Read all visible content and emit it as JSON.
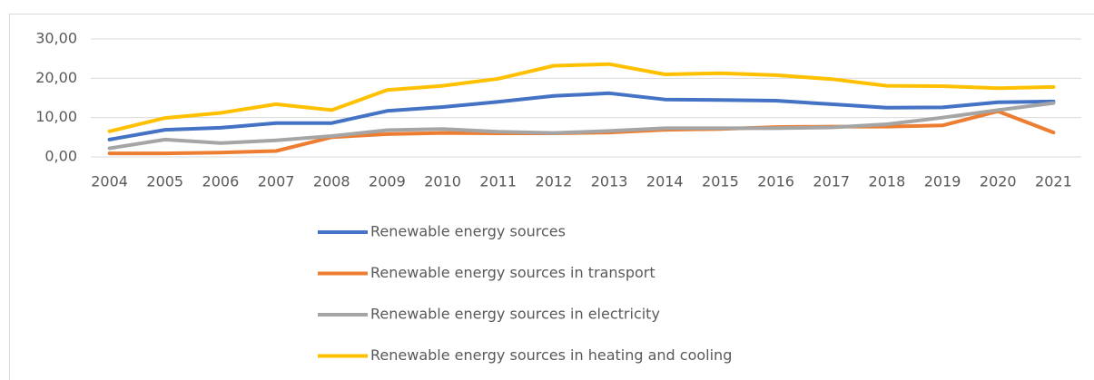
{
  "chart_data": {
    "type": "line",
    "categories": [
      "2004",
      "2005",
      "2006",
      "2007",
      "2008",
      "2009",
      "2010",
      "2011",
      "2012",
      "2013",
      "2014",
      "2015",
      "2016",
      "2017",
      "2018",
      "2019",
      "2020",
      "2021"
    ],
    "series": [
      {
        "name": "Renewable energy sources",
        "color": "#4472c4",
        "values": [
          4.4,
          6.9,
          7.4,
          8.6,
          8.6,
          11.7,
          12.7,
          14.0,
          15.5,
          16.2,
          14.6,
          14.5,
          14.3,
          13.4,
          12.5,
          12.6,
          13.9,
          14.1
        ]
      },
      {
        "name": "Renewable energy sources in transport",
        "color": "#ed7d31",
        "values": [
          0.9,
          0.9,
          1.1,
          1.5,
          5.0,
          5.8,
          6.1,
          6.0,
          6.0,
          6.2,
          6.9,
          7.1,
          7.6,
          7.7,
          7.7,
          8.0,
          11.6,
          6.2
        ]
      },
      {
        "name": "Renewable energy sources in electricity",
        "color": "#a5a5a5",
        "values": [
          2.2,
          4.4,
          3.5,
          4.2,
          5.3,
          6.8,
          7.1,
          6.4,
          6.1,
          6.6,
          7.3,
          7.3,
          7.3,
          7.5,
          8.3,
          10.0,
          11.9,
          13.7
        ]
      },
      {
        "name": "Renewable energy sources in heating and cooling",
        "color": "#ffc000",
        "values": [
          6.5,
          9.9,
          11.2,
          13.4,
          11.9,
          17.0,
          18.1,
          19.9,
          23.2,
          23.6,
          21.0,
          21.3,
          20.8,
          19.8,
          18.1,
          18.0,
          17.5,
          17.8
        ]
      }
    ],
    "ylim": [
      0,
      30
    ],
    "yticks": [
      {
        "value": 0,
        "label": "0,00"
      },
      {
        "value": 10,
        "label": "10,00"
      },
      {
        "value": 20,
        "label": "20,00"
      },
      {
        "value": 30,
        "label": "30,00"
      }
    ],
    "grid": true,
    "legend": "bottom"
  }
}
